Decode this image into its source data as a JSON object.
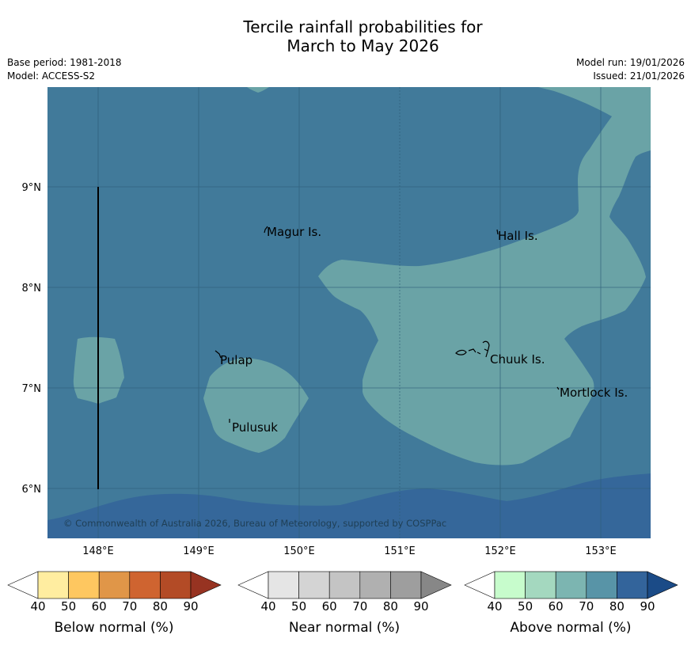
{
  "title": {
    "line1": "Tercile rainfall probabilities for",
    "line2": "March to May 2026"
  },
  "meta": {
    "base_period": "Base period: 1981-2018",
    "model": "Model: ACCESS-S2",
    "model_run": "Model run: 19/01/2026",
    "issued": "Issued: 21/01/2026"
  },
  "map": {
    "lat_labels": [
      "9°N",
      "8°N",
      "7°N",
      "6°N"
    ],
    "lon_labels": [
      "148°E",
      "149°E",
      "150°E",
      "151°E",
      "152°E",
      "153°E"
    ],
    "places": [
      "Magur Is.",
      "Hall Is.",
      "Pulap",
      "Chuuk Is.",
      "Mortlock Is.",
      "Pulusuk"
    ],
    "copyright": "© Commonwealth of Australia 2026, Bureau of Meteorology, supported by COSPPac",
    "colors": {
      "above_70": "#417a9a",
      "above_60": "#6aa3a6",
      "above_80": "#35679a"
    }
  },
  "legends": [
    {
      "name": "Below normal (%)",
      "ticks": [
        "40",
        "50",
        "60",
        "70",
        "80",
        "90"
      ],
      "colors": [
        "#ffffff",
        "#ffeda0",
        "#fec760",
        "#e09648",
        "#cf6430",
        "#b34b26",
        "#973321"
      ]
    },
    {
      "name": "Near normal (%)",
      "ticks": [
        "40",
        "50",
        "60",
        "70",
        "80",
        "90"
      ],
      "colors": [
        "#ffffff",
        "#e5e5e5",
        "#d4d4d4",
        "#c4c4c4",
        "#b0b0b0",
        "#9e9e9e",
        "#878787"
      ]
    },
    {
      "name": "Above normal (%)",
      "ticks": [
        "40",
        "50",
        "60",
        "70",
        "80",
        "90"
      ],
      "colors": [
        "#ffffff",
        "#c7fccc",
        "#a4d8bf",
        "#7cb5b1",
        "#5894a7",
        "#33649b",
        "#1b4b87"
      ]
    }
  ]
}
